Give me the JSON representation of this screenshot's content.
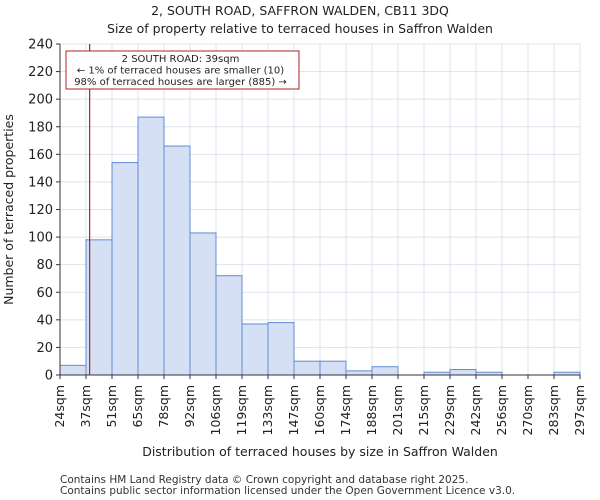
{
  "title_line1": "2, SOUTH ROAD, SAFFRON WALDEN, CB11 3DQ",
  "title_line2": "Size of property relative to terraced houses in Saffron Walden",
  "footer_line1": "Contains HM Land Registry data © Crown copyright and database right 2025.",
  "footer_line2": "Contains public sector information licensed under the Open Government Licence v3.0.",
  "colors": {
    "bar_fill": "#d6e0f5",
    "bar_stroke": "#5f8bd4",
    "marker": "#b22222",
    "grid": "#dde3ee"
  },
  "chart_data": {
    "type": "bar",
    "xlabel": "Distribution of terraced houses by size in Saffron Walden",
    "ylabel": "Number of terraced properties",
    "ylim": [
      0,
      240
    ],
    "yticks": [
      0,
      20,
      40,
      60,
      80,
      100,
      120,
      140,
      160,
      180,
      200,
      220,
      240
    ],
    "bin_edges": [
      "24sqm",
      "37sqm",
      "51sqm",
      "65sqm",
      "78sqm",
      "92sqm",
      "106sqm",
      "119sqm",
      "133sqm",
      "147sqm",
      "160sqm",
      "174sqm",
      "188sqm",
      "201sqm",
      "215sqm",
      "229sqm",
      "242sqm",
      "256sqm",
      "270sqm",
      "283sqm",
      "297sqm"
    ],
    "values": [
      7,
      98,
      154,
      187,
      166,
      103,
      72,
      37,
      38,
      10,
      10,
      3,
      6,
      0,
      2,
      4,
      2,
      0,
      0,
      2
    ],
    "marker": {
      "value_sqm": 39,
      "bin_fraction": 0.14,
      "annotation": [
        "2 SOUTH ROAD: 39sqm",
        "← 1% of terraced houses are smaller (10)",
        "98% of terraced houses are larger (885) →"
      ]
    }
  }
}
